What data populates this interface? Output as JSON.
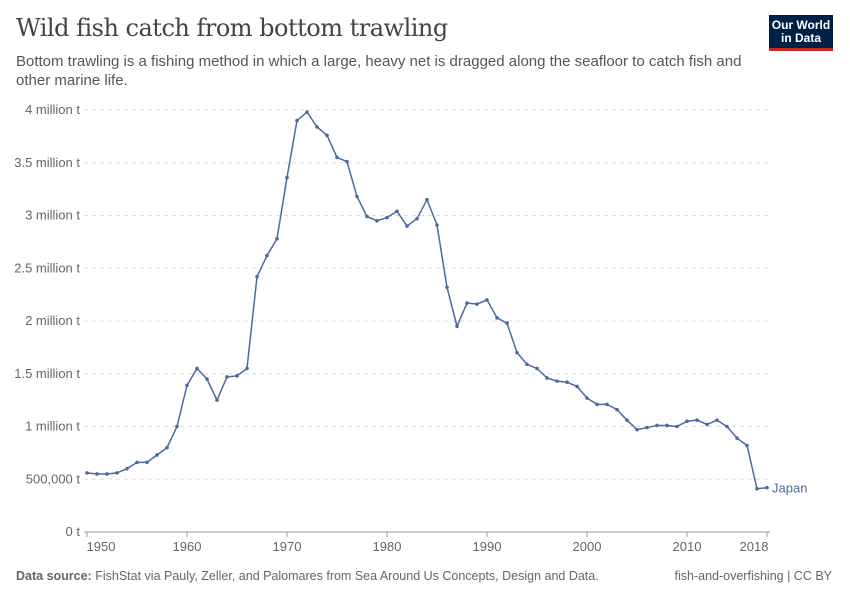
{
  "header": {
    "title": "Wild fish catch from bottom trawling",
    "subtitle": "Bottom trawling is a fishing method in which a large, heavy net is dragged along the seafloor to catch fish and other marine life.",
    "logo": "Our World in Data"
  },
  "footer": {
    "source_label": "Data source:",
    "source": "FishStat via Pauly, Zeller, and Palomares from Sea Around Us Concepts, Design and Data.",
    "credit": "fish-and-overfishing | CC BY"
  },
  "chart_data": {
    "type": "line",
    "title": "Wild fish catch from bottom trawling",
    "xlim": [
      1949,
      2019
    ],
    "ylim": [
      0,
      4000000
    ],
    "grid": "horizontal dashed",
    "x_ticks": [
      1950,
      1960,
      1970,
      1980,
      1990,
      2000,
      2010,
      2018
    ],
    "y_ticks": [
      {
        "v": 0,
        "label": "0 t"
      },
      {
        "v": 500000,
        "label": "500,000 t"
      },
      {
        "v": 1000000,
        "label": "1 million t"
      },
      {
        "v": 1500000,
        "label": "1.5 million t"
      },
      {
        "v": 2000000,
        "label": "2 million t"
      },
      {
        "v": 2500000,
        "label": "2.5 million t"
      },
      {
        "v": 3000000,
        "label": "3 million t"
      },
      {
        "v": 3500000,
        "label": "3.5 million t"
      },
      {
        "v": 4000000,
        "label": "4 million t"
      }
    ],
    "series": [
      {
        "name": "Japan",
        "color": "#4c6a9c",
        "x_start": 1950,
        "values": [
          560000,
          550000,
          550000,
          560000,
          600000,
          660000,
          660000,
          730000,
          800000,
          1000000,
          1390000,
          1550000,
          1450000,
          1250000,
          1470000,
          1480000,
          1550000,
          2420000,
          2620000,
          2780000,
          3360000,
          3900000,
          3980000,
          3840000,
          3760000,
          3550000,
          3510000,
          3180000,
          2990000,
          2950000,
          2980000,
          3040000,
          2900000,
          2970000,
          3150000,
          2910000,
          2320000,
          1950000,
          2170000,
          2160000,
          2200000,
          2030000,
          1980000,
          1700000,
          1590000,
          1550000,
          1460000,
          1430000,
          1420000,
          1380000,
          1270000,
          1210000,
          1210000,
          1160000,
          1060000,
          970000,
          990000,
          1010000,
          1010000,
          1000000,
          1050000,
          1060000,
          1020000,
          1060000,
          1000000,
          890000,
          820000,
          410000,
          420000
        ]
      }
    ]
  }
}
